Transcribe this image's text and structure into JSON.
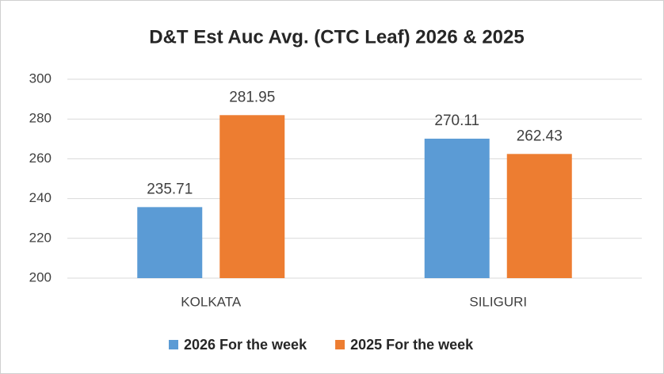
{
  "chart_data": {
    "type": "bar",
    "title": "D&T Est Auc Avg. (CTC Leaf) 2026 & 2025",
    "categories": [
      "KOLKATA",
      "SILIGURI"
    ],
    "series": [
      {
        "name": "2026 For the week",
        "color": "#5b9bd5",
        "values": [
          235.71,
          270.11
        ]
      },
      {
        "name": "2025 For the week",
        "color": "#ed7d31",
        "values": [
          281.95,
          262.43
        ]
      }
    ],
    "ylim": [
      200,
      300
    ],
    "yticks": [
      200,
      220,
      240,
      260,
      280,
      300
    ],
    "grid": true,
    "legend": "bottom"
  }
}
